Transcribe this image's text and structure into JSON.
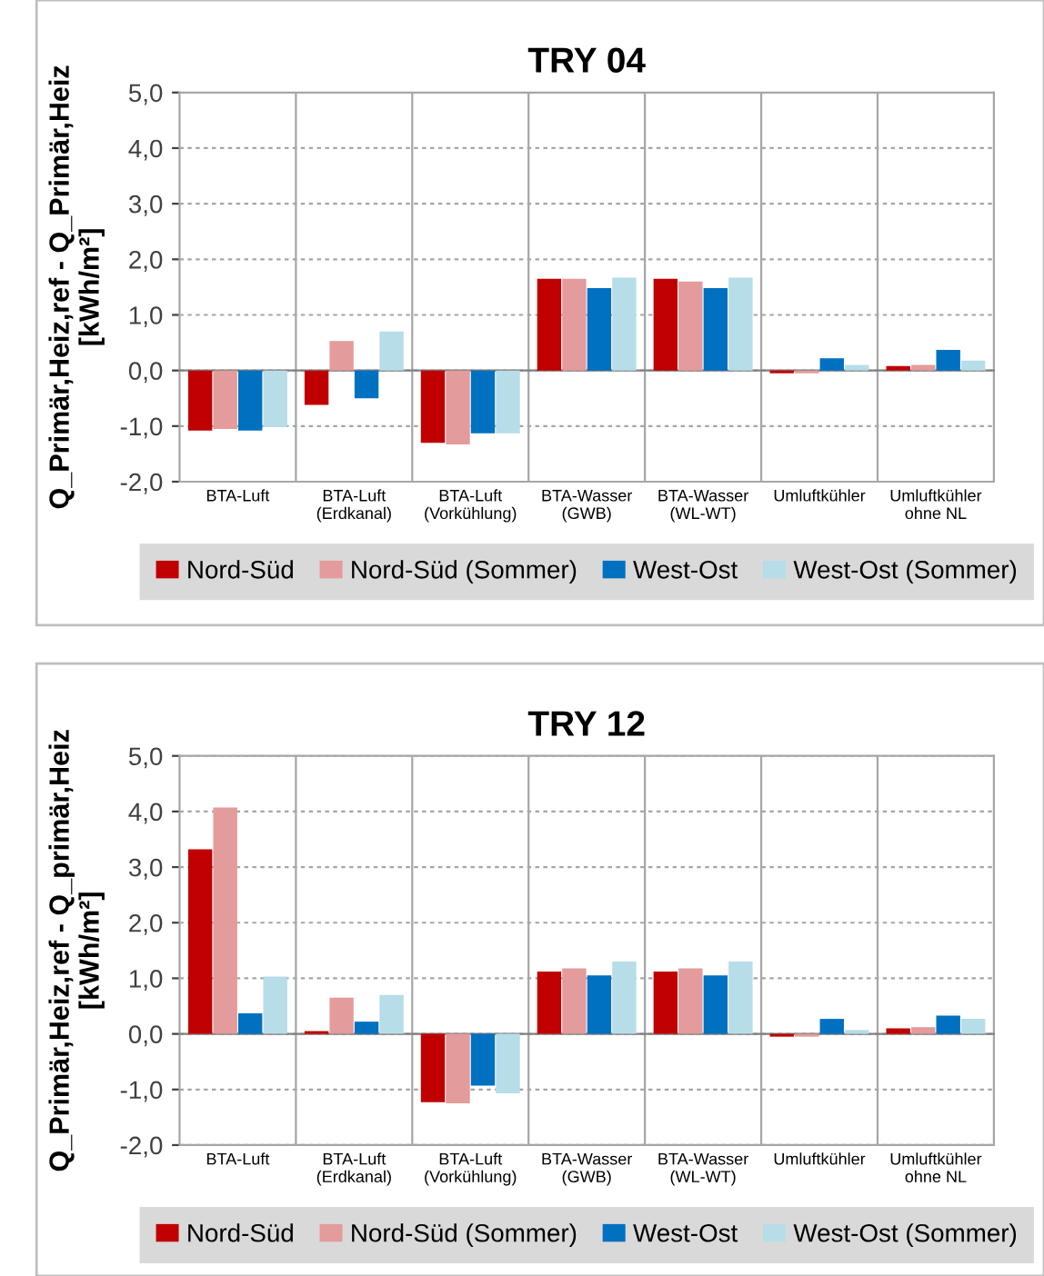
{
  "chart_data": [
    {
      "type": "bar",
      "title": "TRY 04",
      "ylabel": "Q_Primär,Heiz,ref - Q_Primär,Heiz\n[kWh/m²]",
      "categories": [
        "BTA-Luft",
        "BTA-Luft\n(Erdkanal)",
        "BTA-Luft\n(Vorkühlung)",
        "BTA-Wasser\n(GWB)",
        "BTA-Wasser\n(WL-WT)",
        "Umluftkühler",
        "Umluftkühler\nohne NL"
      ],
      "series": [
        {
          "name": "Nord-Süd",
          "color": "#c00000",
          "values": [
            -1.08,
            -0.62,
            -1.3,
            1.65,
            1.65,
            -0.05,
            0.08
          ]
        },
        {
          "name": "Nord-Süd (Sommer)",
          "color": "#e39b9b",
          "values": [
            -1.05,
            0.53,
            -1.33,
            1.65,
            1.6,
            -0.05,
            0.1
          ]
        },
        {
          "name": "West-Ost",
          "color": "#0070c0",
          "values": [
            -1.08,
            -0.5,
            -1.13,
            1.48,
            1.48,
            0.22,
            0.37
          ]
        },
        {
          "name": "West-Ost (Sommer)",
          "color": "#b7dde8",
          "values": [
            -1.02,
            0.7,
            -1.13,
            1.67,
            1.67,
            0.1,
            0.18
          ]
        }
      ],
      "ylim": [
        -2,
        5
      ],
      "yticks": [
        {
          "value": -2,
          "label": "-2,0"
        },
        {
          "value": -1,
          "label": "-1,0"
        },
        {
          "value": 0,
          "label": "0,0"
        },
        {
          "value": 1,
          "label": "1,0"
        },
        {
          "value": 2,
          "label": "2,0"
        },
        {
          "value": 3,
          "label": "3,0"
        },
        {
          "value": 4,
          "label": "4,0"
        },
        {
          "value": 5,
          "label": "5,0"
        }
      ],
      "grid": true,
      "legend": "bottom"
    },
    {
      "type": "bar",
      "title": "TRY 12",
      "ylabel": "Q_Primär,Heiz,ref - Q_primär,Heiz\n[kWh/m²]",
      "categories": [
        "BTA-Luft",
        "BTA-Luft\n(Erdkanal)",
        "BTA-Luft\n(Vorkühlung)",
        "BTA-Wasser\n(GWB)",
        "BTA-Wasser\n(WL-WT)",
        "Umluftkühler",
        "Umluftkühler\nohne NL"
      ],
      "series": [
        {
          "name": "Nord-Süd",
          "color": "#c00000",
          "values": [
            3.32,
            0.05,
            -1.23,
            1.12,
            1.12,
            -0.05,
            0.1
          ]
        },
        {
          "name": "Nord-Süd (Sommer)",
          "color": "#e39b9b",
          "values": [
            4.07,
            0.65,
            -1.25,
            1.18,
            1.18,
            -0.05,
            0.12
          ]
        },
        {
          "name": "West-Ost",
          "color": "#0070c0",
          "values": [
            0.37,
            0.22,
            -0.93,
            1.05,
            1.05,
            0.27,
            0.33
          ]
        },
        {
          "name": "West-Ost (Sommer)",
          "color": "#b7dde8",
          "values": [
            1.03,
            0.7,
            -1.07,
            1.3,
            1.3,
            0.07,
            0.27
          ]
        }
      ],
      "ylim": [
        -2,
        5
      ],
      "yticks": [
        {
          "value": -2,
          "label": "-2,0"
        },
        {
          "value": -1,
          "label": "-1,0"
        },
        {
          "value": 0,
          "label": "0,0"
        },
        {
          "value": 1,
          "label": "1,0"
        },
        {
          "value": 2,
          "label": "2,0"
        },
        {
          "value": 3,
          "label": "3,0"
        },
        {
          "value": 4,
          "label": "4,0"
        },
        {
          "value": 5,
          "label": "5,0"
        }
      ],
      "grid": true,
      "legend": "bottom"
    }
  ]
}
